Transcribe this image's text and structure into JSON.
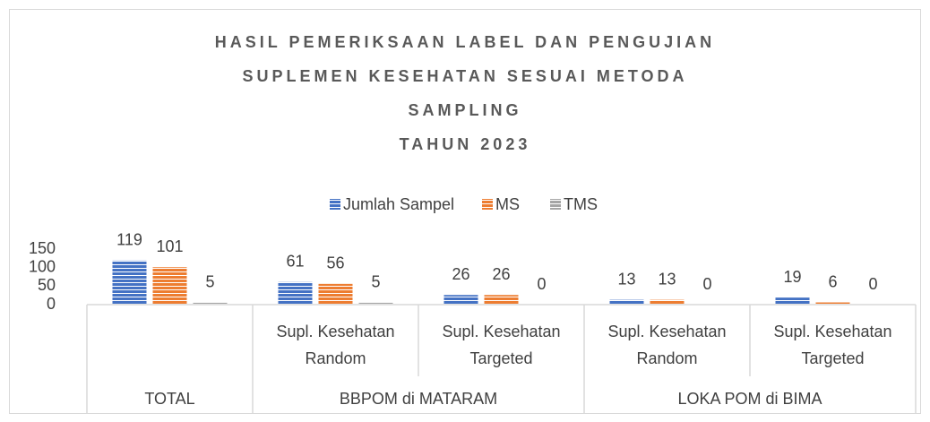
{
  "chart_data": {
    "type": "bar",
    "title": [
      "HASIL PEMERIKSAAN LABEL DAN PENGUJIAN",
      "SUPLEMEN KESEHATAN SESUAI METODA",
      "SAMPLING",
      "TAHUN 2023"
    ],
    "groups": [
      {
        "label": "TOTAL",
        "categories": [
          null
        ]
      },
      {
        "label": "BBPOM di MATARAM",
        "categories": [
          "Supl. Kesehatan Random",
          "Supl. Kesehatan Targeted"
        ]
      },
      {
        "label": "LOKA POM di BIMA",
        "categories": [
          "Supl. Kesehatan Random",
          "Supl. Kesehatan Targeted"
        ]
      }
    ],
    "series": [
      {
        "name": "Jumlah Sampel",
        "color": "#4472c4",
        "values": [
          119,
          61,
          26,
          13,
          19
        ]
      },
      {
        "name": "MS",
        "color": "#ed7d31",
        "values": [
          101,
          56,
          26,
          13,
          6
        ]
      },
      {
        "name": "TMS",
        "color": "#a5a5a5",
        "values": [
          5,
          5,
          0,
          0,
          0
        ]
      }
    ],
    "ylim": [
      0,
      150
    ],
    "yticks": [
      0,
      50,
      100,
      150
    ],
    "legend": "top"
  }
}
